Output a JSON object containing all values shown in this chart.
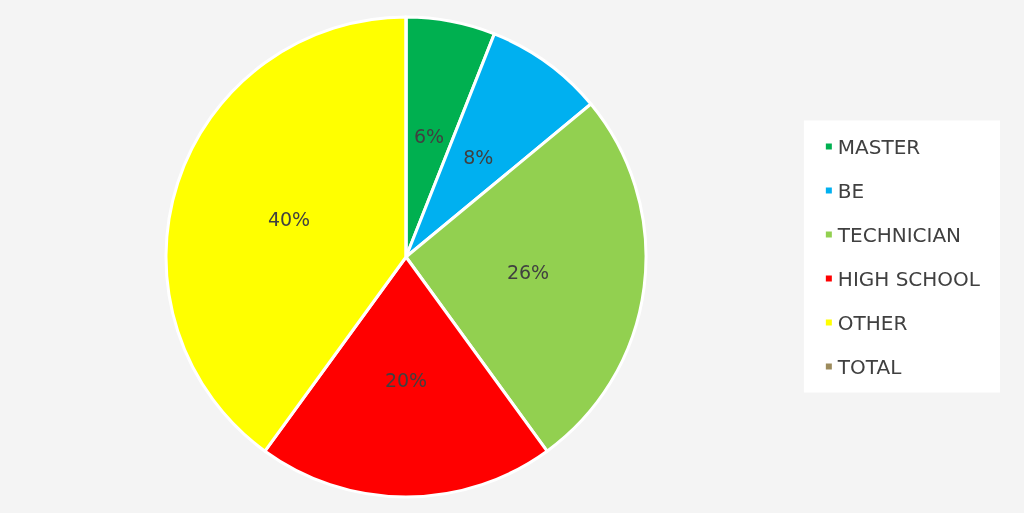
{
  "chart_data": {
    "type": "pie",
    "categories": [
      "MASTER",
      "BE",
      "TECHNICIAN",
      "HIGH SCHOOL",
      "OTHER",
      "TOTAL"
    ],
    "values": [
      6,
      8,
      26,
      20,
      40,
      0
    ],
    "colors": [
      "#00b050",
      "#00b0f0",
      "#92d050",
      "#ff0000",
      "#ffff00",
      "#9c8b5c"
    ],
    "value_labels": [
      "6%",
      "8%",
      "26%",
      "20%",
      "40%",
      null
    ],
    "legend": "right"
  }
}
